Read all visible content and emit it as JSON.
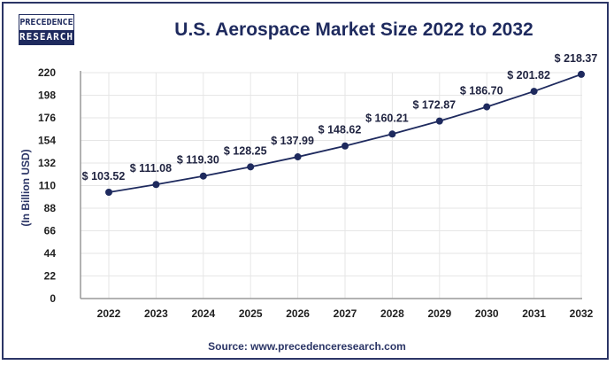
{
  "brand": {
    "line1": "PRECEDENCE",
    "line2": "RESEARCH"
  },
  "source": "Source: www.precedenceresearch.com",
  "colors": {
    "line": "#1e2a5e",
    "marker": "#1e2a5e",
    "grid": "#e6e6e6",
    "axis": "#999999",
    "frame": "#2b3566"
  },
  "chart_data": {
    "type": "line",
    "title": "U.S. Aerospace Market Size 2022 to 2032",
    "xlabel": "",
    "ylabel": "(In Billion USD)",
    "categories": [
      "2022",
      "2023",
      "2024",
      "2025",
      "2026",
      "2027",
      "2028",
      "2029",
      "2030",
      "2031",
      "2032"
    ],
    "series": [
      {
        "name": "U.S. Aerospace Market Size",
        "values": [
          103.52,
          111.08,
          119.3,
          128.25,
          137.99,
          148.62,
          160.21,
          172.87,
          186.7,
          201.82,
          218.37
        ]
      }
    ],
    "data_labels": [
      "$ 103.52",
      "$ 111.08",
      "$ 119.30",
      "$ 128.25",
      "$ 137.99",
      "$ 148.62",
      "$ 160.21",
      "$ 172.87",
      "$ 186.70",
      "$ 201.82",
      "$ 218.37"
    ],
    "yticks": [
      0,
      22,
      44,
      66,
      88,
      110,
      132,
      154,
      176,
      198,
      220
    ],
    "ylim": [
      0,
      220
    ],
    "grid": true,
    "legend": "none"
  }
}
